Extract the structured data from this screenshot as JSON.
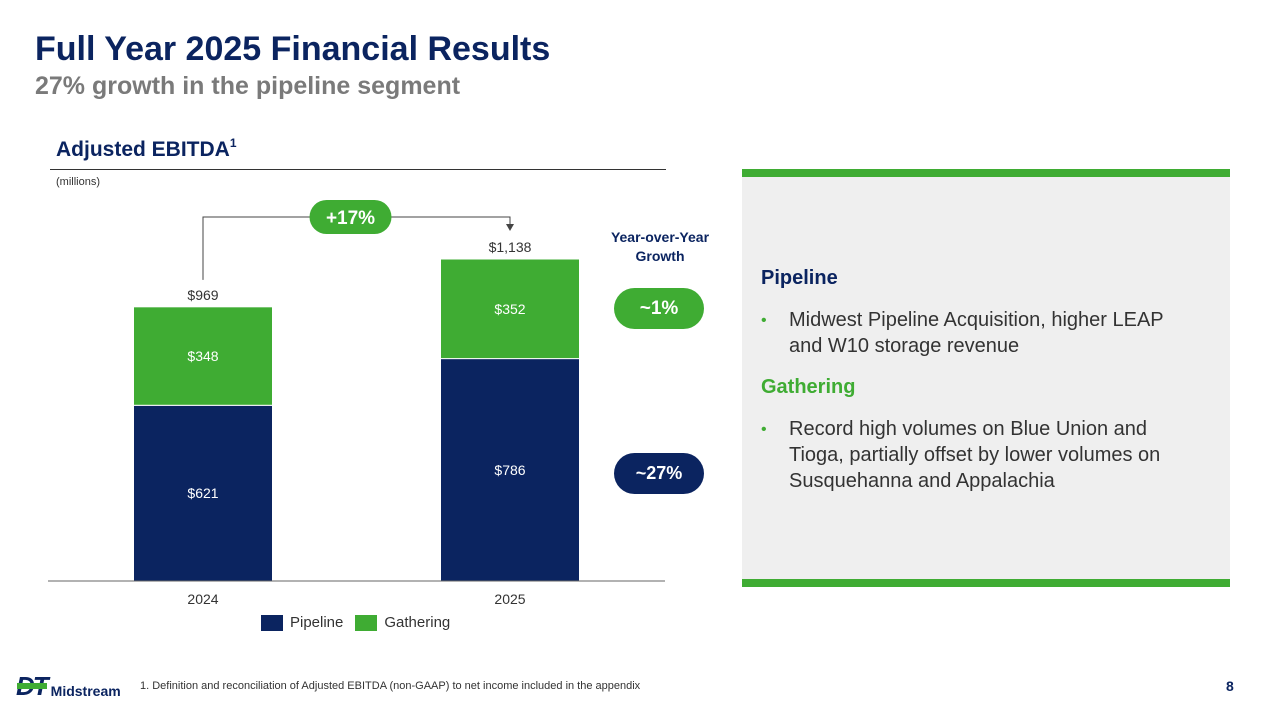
{
  "header": {
    "title": "Full Year 2025 Financial Results",
    "subtitle": "27% growth in the pipeline segment"
  },
  "chart_heading": {
    "label": "Adjusted EBITDA",
    "footnote_mark": "1",
    "units": "(millions)"
  },
  "chart_data": {
    "type": "bar",
    "stacked": true,
    "categories": [
      "2024",
      "2025"
    ],
    "series": [
      {
        "name": "Pipeline",
        "values": [
          621,
          786
        ],
        "labels": [
          "$621",
          "$786"
        ],
        "color": "#0b2460"
      },
      {
        "name": "Gathering",
        "values": [
          348,
          352
        ],
        "labels": [
          "$348",
          "$352"
        ],
        "color": "#3fac33"
      }
    ],
    "totals": [
      969,
      1138
    ],
    "total_labels": [
      "$969",
      "$1,138"
    ],
    "growth_annotation": "+17%",
    "ylim": [
      0,
      1138
    ]
  },
  "yoy": {
    "title_line1": "Year-over-Year",
    "title_line2": "Growth",
    "gathering_growth": "~1%",
    "pipeline_growth": "~27%"
  },
  "legend": {
    "pipeline": "Pipeline",
    "gathering": "Gathering"
  },
  "panel": {
    "pipeline_title": "Pipeline",
    "pipeline_bullet": "Midwest Pipeline Acquisition, higher LEAP and W10 storage revenue",
    "gathering_title": "Gathering",
    "gathering_bullet": "Record high volumes on Blue Union and Tioga, partially offset by lower volumes on Susquehanna and Appalachia",
    "bullet_glyph": "•"
  },
  "footer": {
    "logo_mark": "DT",
    "logo_text": "Midstream",
    "footnote": "1.   Definition and reconciliation of Adjusted EBITDA (non-GAAP) to net income included in the appendix",
    "page_number": "8"
  },
  "colors": {
    "navy": "#0b2460",
    "green": "#3fac33",
    "gray_text": "#7a7a7a",
    "panel_bg": "#efefef"
  }
}
